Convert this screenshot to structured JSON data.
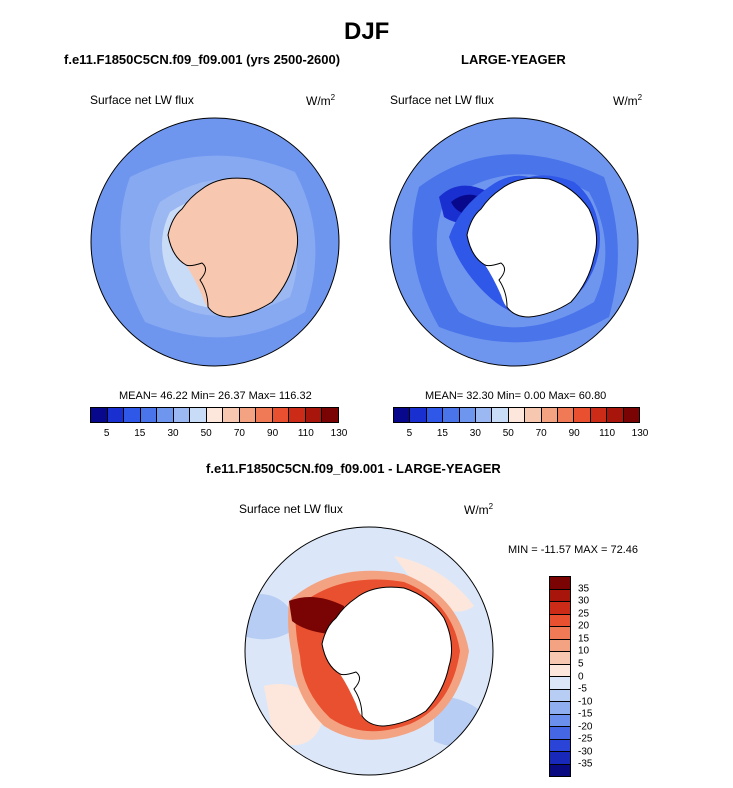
{
  "title": "DJF",
  "panels": [
    {
      "case": "f.e11.F1850C5CN.f09_f09.001 (yrs 2500-2600)",
      "variable": "Surface net LW flux",
      "units_base": "W/m",
      "units_exp": "2",
      "stats": "MEAN=  46.22  Min=  26.37  Max= 116.32"
    },
    {
      "case": "LARGE-YEAGER",
      "variable": "Surface net LW flux",
      "units_base": "W/m",
      "units_exp": "2",
      "stats": "MEAN=  32.30  Min=   0.00  Max=  60.80"
    }
  ],
  "colorbar": {
    "ticks": [
      "5",
      "15",
      "30",
      "50",
      "70",
      "90",
      "110",
      "130"
    ],
    "colors": [
      "#08088c",
      "#1a2fd0",
      "#2f57e8",
      "#4a74ea",
      "#6f96ef",
      "#9cb8f2",
      "#c9dcf7",
      "#fde7dc",
      "#f8c7b0",
      "#f4a382",
      "#f07a55",
      "#e85030",
      "#cc2b18",
      "#a8150a",
      "#7a0403"
    ]
  },
  "diff": {
    "title": "f.e11.F1850C5CN.f09_f09.001 - LARGE-YEAGER",
    "variable": "Surface net LW flux",
    "units_base": "W/m",
    "units_exp": "2",
    "minmax": "MIN = -11.57 MAX =  72.46",
    "ticks": [
      "35",
      "30",
      "25",
      "20",
      "15",
      "10",
      "5",
      "0",
      "-5",
      "-10",
      "-15",
      "-20",
      "-25",
      "-30",
      "-35"
    ],
    "colors": [
      "#7a0403",
      "#a8150a",
      "#cc2b18",
      "#e85030",
      "#f07a55",
      "#f4a382",
      "#f8c7b0",
      "#fde7dc",
      "#dbe7f8",
      "#b7cdf4",
      "#8eaef0",
      "#6a8fec",
      "#4567e5",
      "#2a44d8",
      "#1828b8",
      "#0a0a80"
    ]
  }
}
